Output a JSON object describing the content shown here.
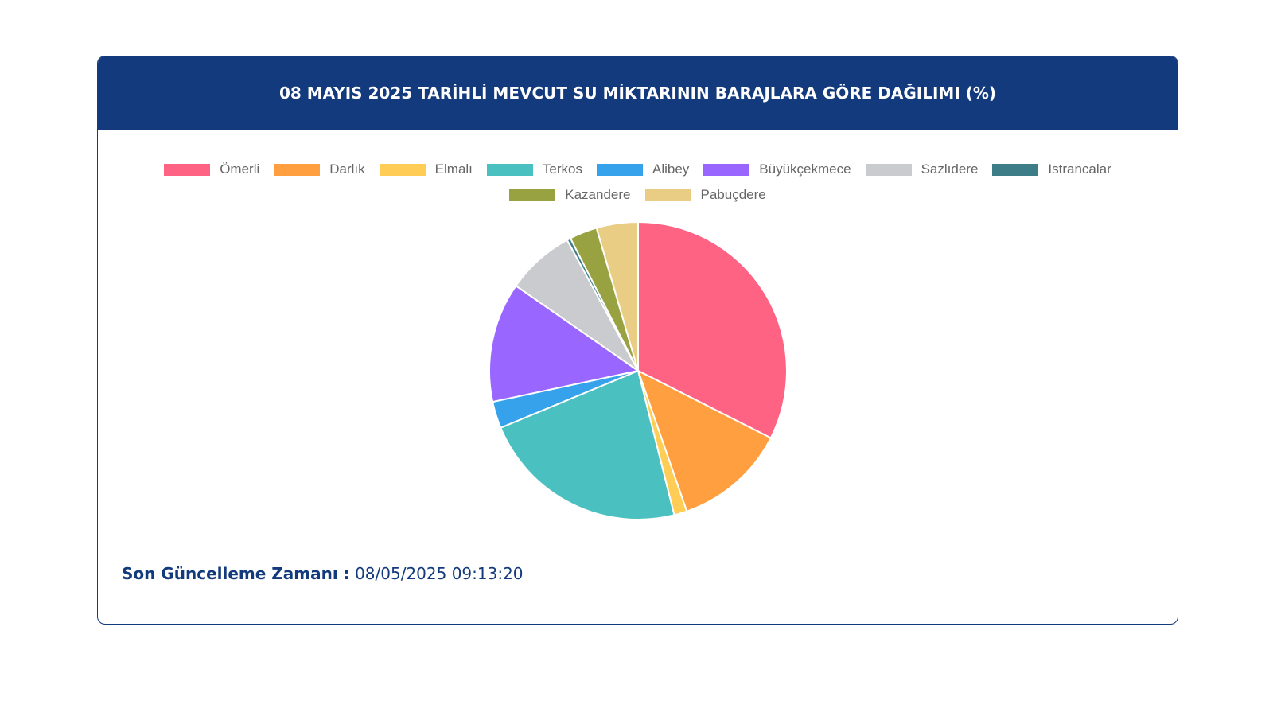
{
  "chart_data": {
    "type": "pie",
    "title": "08 MAYIS 2025 TARİHLİ MEVCUT SU MİKTARININ BARAJLARA GÖRE DAĞILIMI (%)",
    "categories": [
      "Ömerli",
      "Darlık",
      "Elmalı",
      "Terkos",
      "Alibey",
      "Büyükçekmece",
      "Sazlıdere",
      "Istrancalar",
      "Kazandere",
      "Pabuçdere"
    ],
    "values": [
      32.4,
      12.2,
      1.4,
      22.6,
      2.9,
      13.0,
      7.4,
      0.4,
      3.0,
      4.5
    ],
    "colors": [
      "#ff6384",
      "#ff9f40",
      "#ffcd56",
      "#4bc0c0",
      "#36a2eb",
      "#9966ff",
      "#c9cbcf",
      "#3d7d87",
      "#98a240",
      "#e9cd84"
    ],
    "update_label": "Son Güncelleme Zamanı :",
    "update_time": "08/05/2025 09:13:20"
  }
}
